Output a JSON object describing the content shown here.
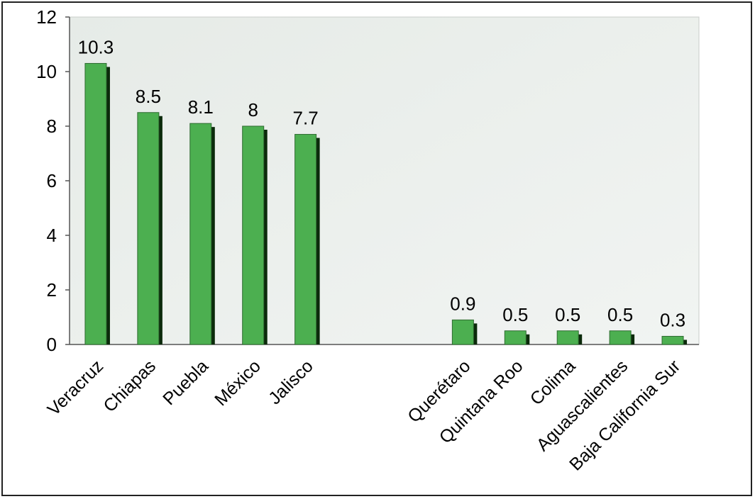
{
  "chart_data": {
    "type": "bar",
    "categories": [
      "Veracruz",
      "Chiapas",
      "Puebla",
      "México",
      "Jalisco",
      "",
      "",
      "Querétaro",
      "Quintana Roo",
      "Colima",
      "Aguascalientes",
      "Baja California Sur"
    ],
    "values": [
      10.3,
      8.5,
      8.1,
      8.0,
      7.7,
      null,
      null,
      0.9,
      0.5,
      0.5,
      0.5,
      0.3
    ],
    "data_labels": [
      "10.3",
      "8.5",
      "8.1",
      "8",
      "7.7",
      "",
      "",
      "0.9",
      "0.5",
      "0.5",
      "0.5",
      "0.3"
    ],
    "ylim": [
      0,
      12
    ],
    "yticks": [
      "0",
      "2",
      "4",
      "6",
      "8",
      "10",
      "12"
    ],
    "grid": false,
    "colors": {
      "bar": "#4caf50",
      "bar_shadow": "#0b2a0b",
      "plot_background": "#e9eeea",
      "axis": "#555555"
    }
  }
}
